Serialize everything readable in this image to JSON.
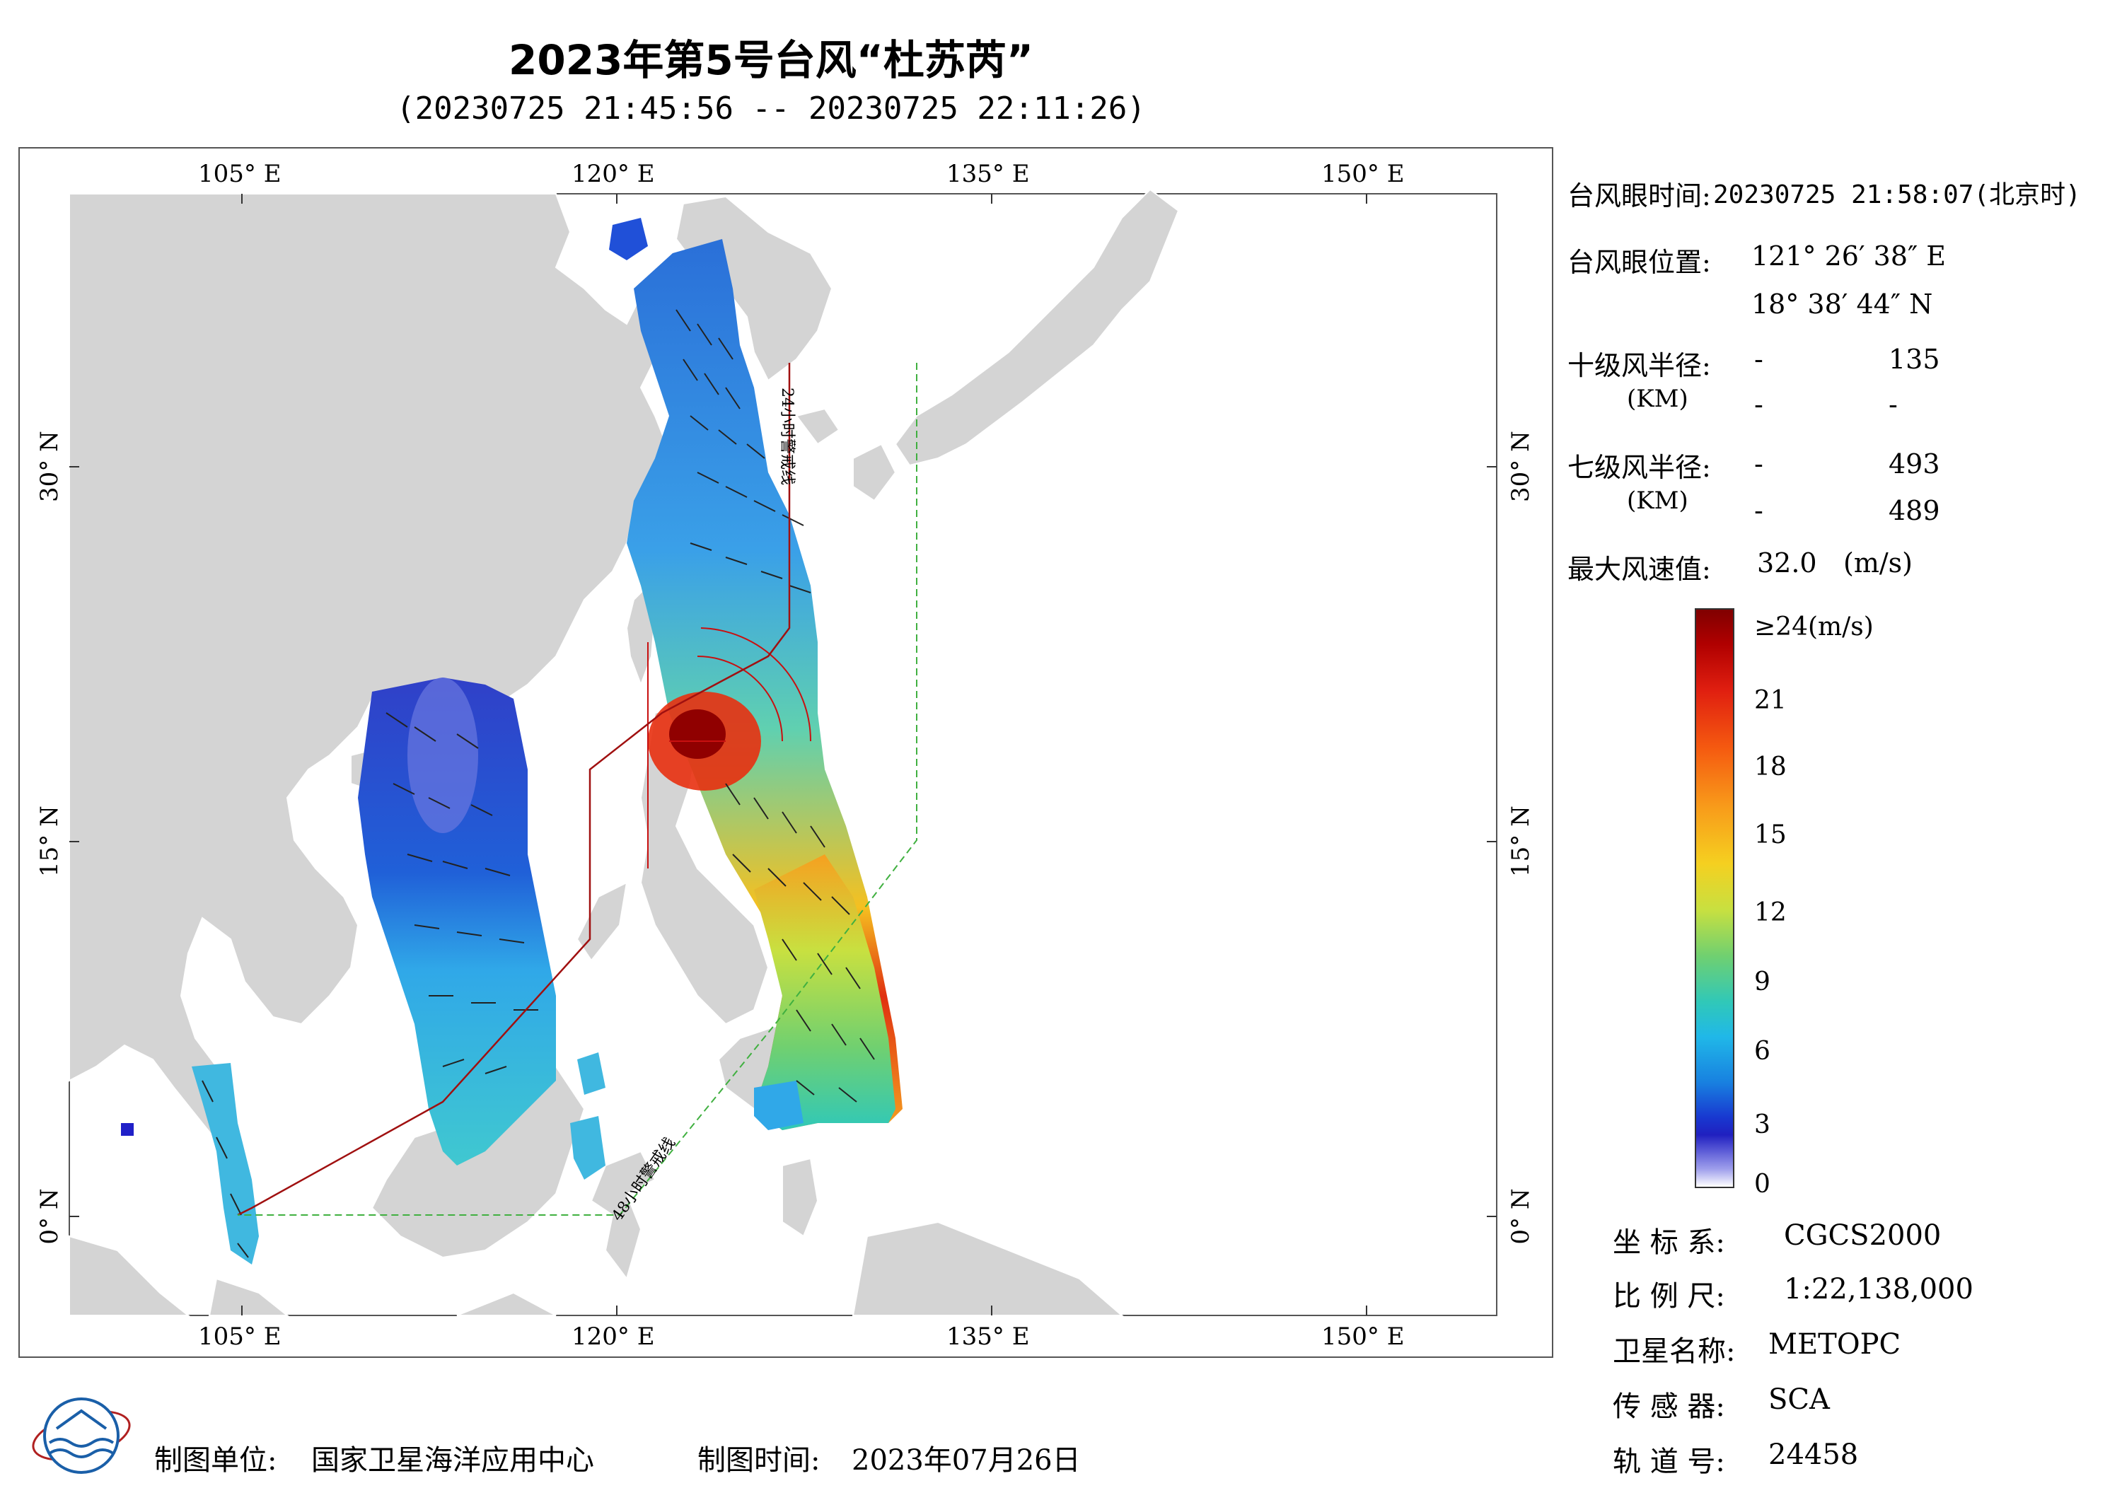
{
  "title": "2023年第5号台风“杜苏芮”",
  "subtitle": "(20230725 21:45:56 -- 20230725 22:11:26)",
  "axes": {
    "lon_top": [
      "105° E",
      "120° E",
      "135° E",
      "150° E"
    ],
    "lon_bottom": [
      "105° E",
      "120° E",
      "135° E",
      "150° E"
    ],
    "lat_left": [
      "30° N",
      "15° N",
      "0° N"
    ],
    "lat_right": [
      "30° N",
      "15° N",
      "0° N"
    ]
  },
  "map_annotations": {
    "line_24h": "24小时警戒线",
    "line_48h": "48小时警戒线"
  },
  "info": {
    "eye_time_label": "台风眼时间:",
    "eye_time_value": "20230725 21:58:07(北京时)",
    "eye_pos_label": "台风眼位置:",
    "eye_lon": "121° 26′ 38″ E",
    "eye_lat": "18° 38′ 44″ N",
    "r10_label": "十级风半径:",
    "r10_unit": "(KM)",
    "r10_vals": [
      "-",
      "135",
      "-",
      "-"
    ],
    "r7_label": "七级风半径:",
    "r7_unit": "(KM)",
    "r7_vals": [
      "-",
      "493",
      "-",
      "489"
    ],
    "max_wind_label": "最大风速值:",
    "max_wind_value": "32.0",
    "max_wind_unit": "(m/s)"
  },
  "colorbar": {
    "labels": [
      "≥24(m/s)",
      "21",
      "18",
      "15",
      "12",
      "9",
      "6",
      "3",
      "0"
    ],
    "colors": [
      "#800000",
      "#e01f10",
      "#f89a1a",
      "#f5d020",
      "#70d070",
      "#20b8e8",
      "#1880e0",
      "#2020c0",
      "#ffffff"
    ]
  },
  "meta": {
    "coord_label": "坐 标 系:",
    "coord_value": "CGCS2000",
    "scale_label": "比 例 尺:",
    "scale_value": "1:22,138,000",
    "sat_label": "卫星名称:",
    "sat_value": "METOPC",
    "sensor_label": "传 感 器:",
    "sensor_value": "SCA",
    "orbit_label": "轨 道 号:",
    "orbit_value": "24458"
  },
  "footer": {
    "unit_label": "制图单位:",
    "unit_value": "国家卫星海洋应用中心",
    "time_label": "制图时间:",
    "time_value": "2023年07月26日"
  }
}
